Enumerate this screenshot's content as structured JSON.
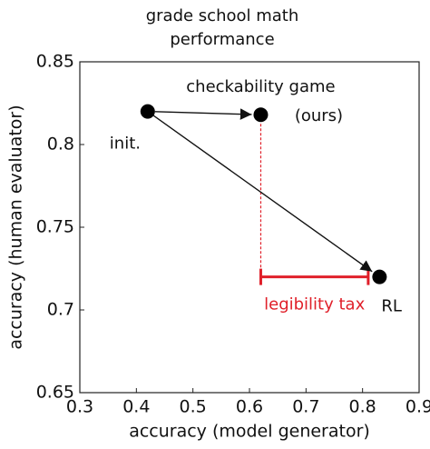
{
  "chart_data": {
    "type": "scatter",
    "title": [
      "grade school math",
      "performance"
    ],
    "x_label": "accuracy (model generator)",
    "y_label": "accuracy (human evaluator)",
    "x": [
      0.42,
      0.62,
      0.83
    ],
    "y": [
      0.82,
      0.818,
      0.72
    ],
    "point_labels": [
      [
        "init."
      ],
      [
        "checkability game",
        "(ours)"
      ],
      [
        "RL"
      ]
    ],
    "color": "#000000",
    "xlim": [
      0.3,
      0.9
    ],
    "ylim": [
      0.65,
      0.85
    ],
    "xticks": [
      0.3,
      0.4,
      0.5,
      0.6,
      0.7,
      0.8,
      0.9
    ],
    "yticks": [
      0.65,
      0.7,
      0.75,
      0.8,
      0.85
    ],
    "annotation": {
      "text": "legibility tax",
      "x": [
        0.62,
        0.81
      ],
      "y": 0.72,
      "color": "#e0202a"
    }
  }
}
